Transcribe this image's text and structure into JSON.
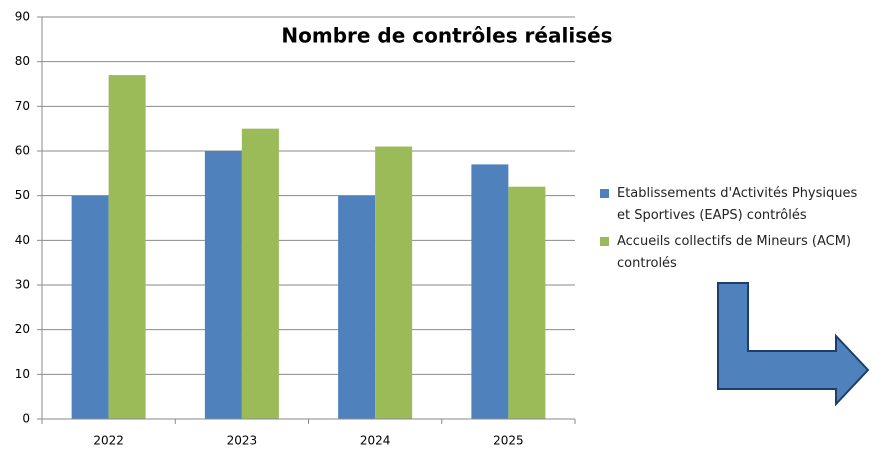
{
  "chart_data": {
    "type": "bar",
    "title": "Nombre de contrôles réalisés",
    "categories": [
      "2022",
      "2023",
      "2024",
      "2025"
    ],
    "series": [
      {
        "name": "Etablissements d'Activités Physiques et Sportives  (EAPS) contrôlés",
        "color": "#4f81bd",
        "values": [
          50,
          60,
          50,
          57
        ]
      },
      {
        "name": "Accueils collectifs de Mineurs (ACM) controlés",
        "color": "#9bbb59",
        "values": [
          77,
          65,
          61,
          52
        ]
      }
    ],
    "ylim": [
      0,
      90
    ],
    "yticks": [
      0,
      10,
      20,
      30,
      40,
      50,
      60,
      70,
      80,
      90
    ],
    "grid": true,
    "legend": "right"
  }
}
